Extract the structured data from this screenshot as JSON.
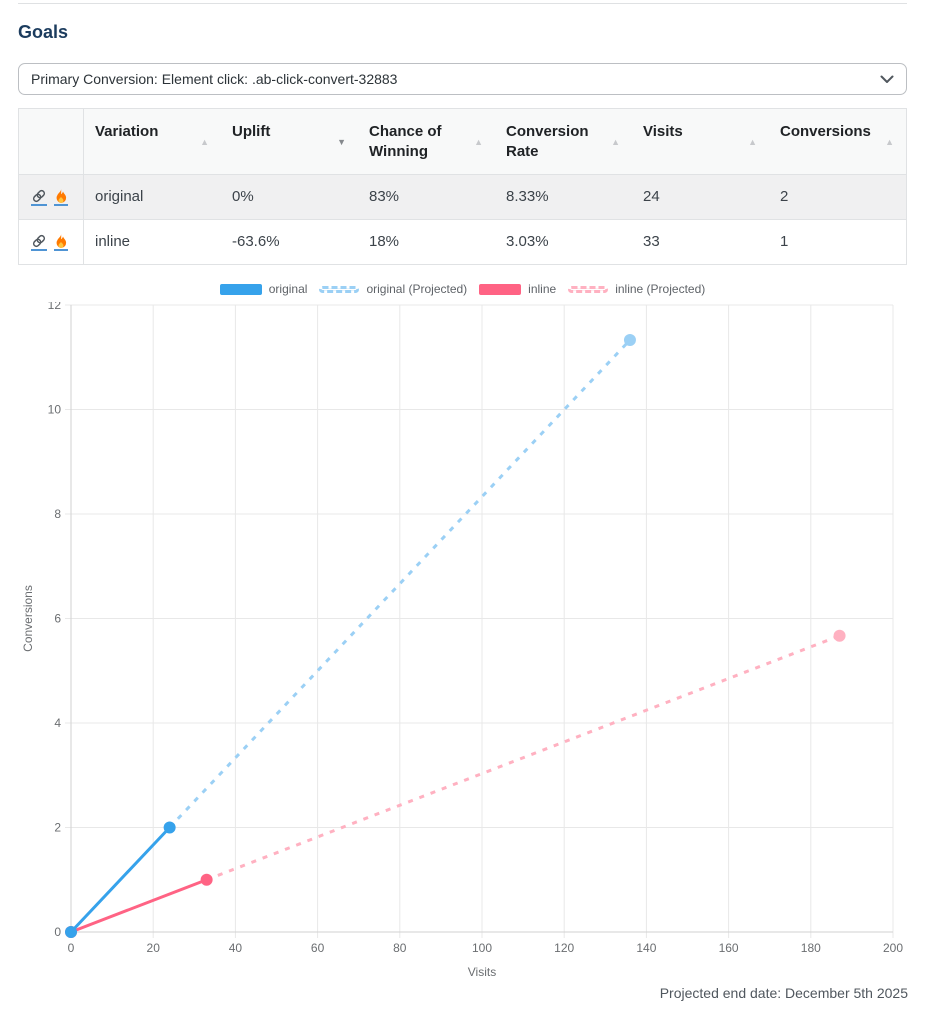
{
  "header": {
    "title": "Goals"
  },
  "goal_select": {
    "value": "Primary Conversion: Element click: .ab-click-convert-32883"
  },
  "table": {
    "columns": [
      {
        "label": "Variation",
        "sort_dir": "asc",
        "sort_active": false
      },
      {
        "label": "Uplift",
        "sort_dir": "desc",
        "sort_active": true
      },
      {
        "label": "Chance of Winning",
        "sort_dir": "asc",
        "sort_active": false
      },
      {
        "label": "Conversion Rate",
        "sort_dir": "asc",
        "sort_active": false
      },
      {
        "label": "Visits",
        "sort_dir": "asc",
        "sort_active": false
      },
      {
        "label": "Conversions",
        "sort_dir": "asc",
        "sort_active": false
      }
    ],
    "rows": [
      {
        "variation": "original",
        "uplift": "0%",
        "chance_of_winning": "83%",
        "conversion_rate": "8.33%",
        "visits": "24",
        "conversions": "2"
      },
      {
        "variation": "inline",
        "uplift": "-63.6%",
        "chance_of_winning": "18%",
        "conversion_rate": "3.03%",
        "visits": "33",
        "conversions": "1"
      }
    ],
    "row_icons": [
      "link-icon",
      "flame-icon"
    ]
  },
  "chart_data": {
    "type": "line",
    "xlabel": "Visits",
    "ylabel": "Conversions",
    "xlim": [
      0,
      200
    ],
    "xtick_step": 20,
    "ylim": [
      0,
      12
    ],
    "ytick_step": 2,
    "xticks": [
      0,
      20,
      40,
      60,
      80,
      100,
      120,
      140,
      160,
      180,
      200
    ],
    "yticks": [
      0,
      2,
      4,
      6,
      8,
      10,
      12
    ],
    "grid": true,
    "legend_position": "top",
    "series": [
      {
        "name": "original",
        "color": "#36A2EB",
        "dash": false,
        "points": [
          [
            0,
            0
          ],
          [
            24,
            2
          ]
        ]
      },
      {
        "name": "original (Projected)",
        "color": "#9BD0F5",
        "dash": true,
        "points": [
          [
            24,
            2
          ],
          [
            136,
            11.33
          ]
        ]
      },
      {
        "name": "inline",
        "color": "#FF6384",
        "dash": false,
        "points": [
          [
            0,
            0
          ],
          [
            33,
            1
          ]
        ]
      },
      {
        "name": "inline (Projected)",
        "color": "#FFB1C1",
        "dash": true,
        "points": [
          [
            33,
            1
          ],
          [
            187,
            5.67
          ]
        ]
      }
    ],
    "footnote": "Projected end date: December 5th 2025"
  },
  "footer": {
    "projected_end_date": "Projected end date: December 5th 2025"
  }
}
